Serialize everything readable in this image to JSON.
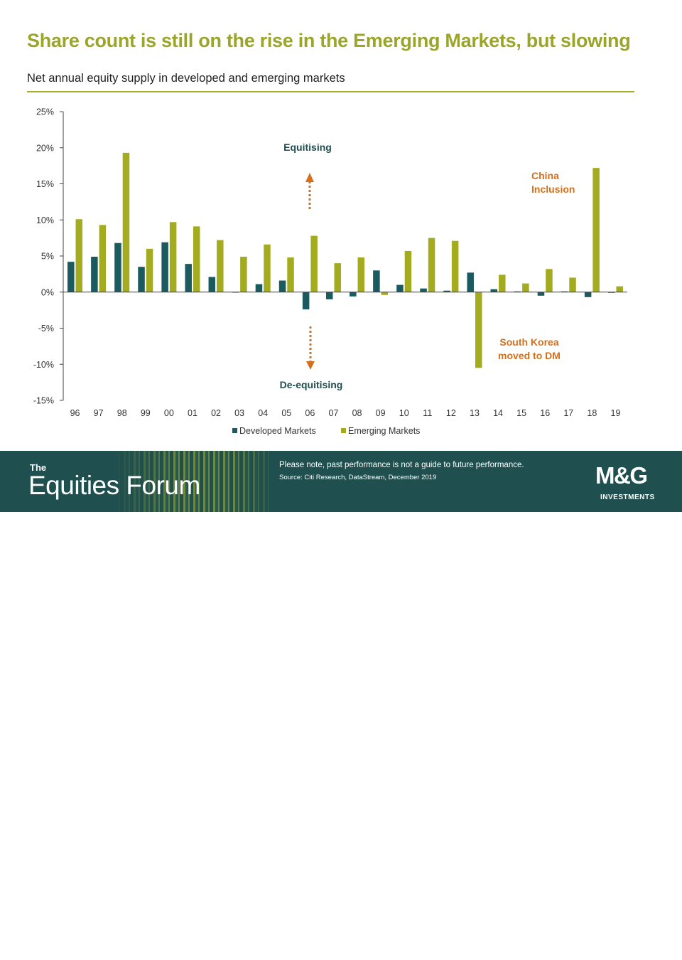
{
  "header": {
    "title": "Share count is still on the rise in the Emerging Markets, but slowing",
    "subtitle": "Net annual equity supply in developed and emerging markets"
  },
  "colors": {
    "developed": "#1b5a5e",
    "emerging": "#a3ac1e",
    "title": "#9aa52a",
    "annotation": "#d4701c",
    "footer_bg": "#1f4f4f"
  },
  "chart_data": {
    "type": "bar",
    "categories": [
      "96",
      "97",
      "98",
      "99",
      "00",
      "01",
      "02",
      "03",
      "04",
      "05",
      "06",
      "07",
      "08",
      "09",
      "10",
      "11",
      "12",
      "13",
      "14",
      "15",
      "16",
      "17",
      "18",
      "19"
    ],
    "series": [
      {
        "name": "Developed Markets",
        "values": [
          4.2,
          4.9,
          6.8,
          3.5,
          6.9,
          3.9,
          2.1,
          0.0,
          1.1,
          1.6,
          -2.4,
          -1.0,
          -0.6,
          3.0,
          1.0,
          0.5,
          0.2,
          2.7,
          0.4,
          0.1,
          -0.5,
          0.1,
          -0.7,
          -0.1
        ]
      },
      {
        "name": "Emerging Markets",
        "values": [
          10.1,
          9.3,
          19.3,
          6.0,
          9.7,
          9.1,
          7.2,
          4.9,
          6.6,
          4.8,
          7.8,
          4.0,
          4.8,
          -0.4,
          5.7,
          7.5,
          7.1,
          -10.5,
          2.4,
          1.2,
          3.2,
          2.0,
          17.2,
          0.8
        ]
      }
    ],
    "yticks": [
      "25%",
      "20%",
      "15%",
      "10%",
      "5%",
      "0%",
      "-5%",
      "-10%",
      "-15%"
    ],
    "ylim": [
      -15,
      25
    ],
    "legend": "bottom-center",
    "grid": false,
    "annotations": {
      "up": "Equitising",
      "down": "De-equitising",
      "china": [
        "China",
        "Inclusion"
      ],
      "korea": [
        "South Korea",
        "moved to DM"
      ]
    }
  },
  "footer": {
    "brand_small": "The",
    "brand_name": "Equities Forum",
    "note": "Please note, past performance  is not a guide to future performance.",
    "source": "Source: Citi Research, DataStream, December 2019",
    "logo_main": "M&G",
    "logo_sub": "INVESTMENTS"
  }
}
